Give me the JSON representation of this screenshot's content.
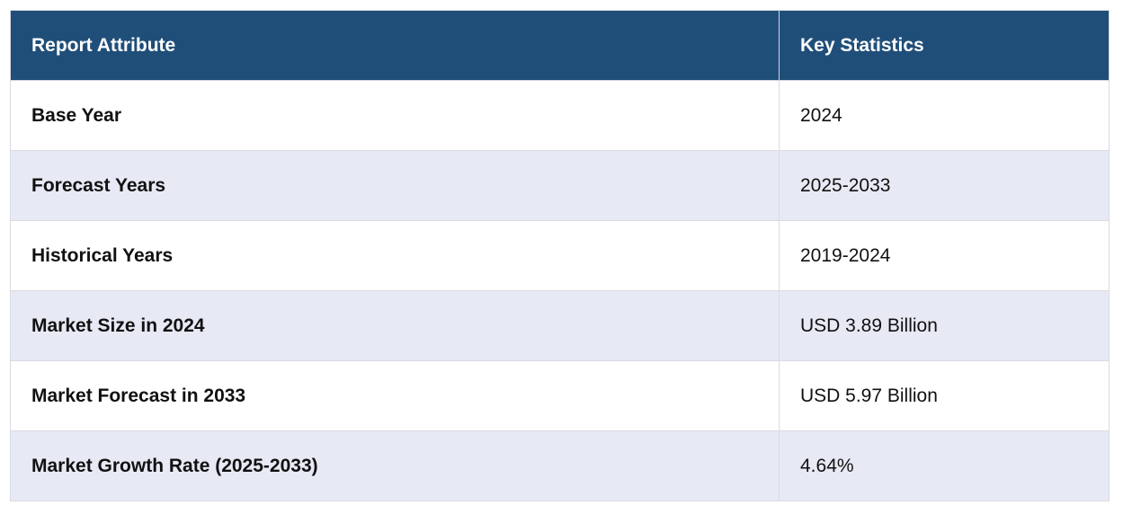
{
  "table": {
    "headers": [
      "Report Attribute",
      "Key Statistics"
    ],
    "rows": [
      {
        "attribute": "Base Year",
        "value": "2024"
      },
      {
        "attribute": "Forecast Years",
        "value": "2025-2033"
      },
      {
        "attribute": "Historical Years",
        "value": "2019-2024"
      },
      {
        "attribute": "Market Size in 2024",
        "value": "USD 3.89 Billion"
      },
      {
        "attribute": "Market Forecast in 2033",
        "value": "USD 5.97 Billion"
      },
      {
        "attribute": "Market Growth Rate (2025-2033)",
        "value": "4.64%"
      }
    ]
  },
  "colors": {
    "header_bg": "#1f4e79",
    "header_text": "#ffffff",
    "row_alt_bg": "#e7e9f4",
    "row_bg": "#ffffff"
  }
}
